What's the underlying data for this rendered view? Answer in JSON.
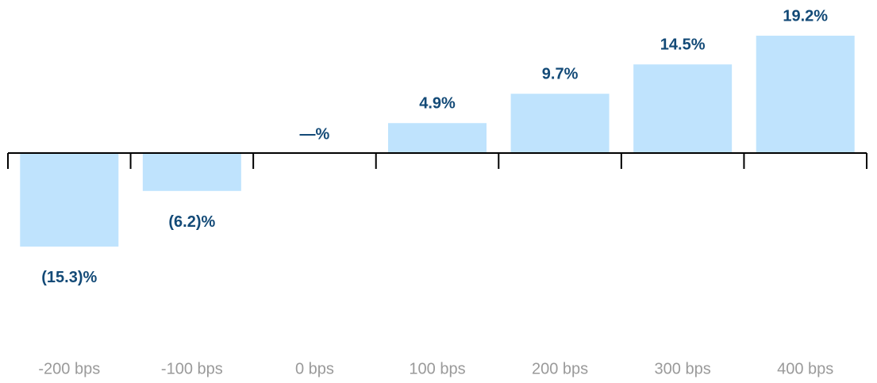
{
  "chart_data": {
    "type": "bar",
    "categories": [
      "-200 bps",
      "-100 bps",
      "0 bps",
      "100 bps",
      "200 bps",
      "300 bps",
      "400 bps"
    ],
    "values": [
      -15.3,
      -6.2,
      0,
      4.9,
      9.7,
      14.5,
      19.2
    ],
    "value_labels": [
      "(15.3)%",
      "(6.2)%",
      "—%",
      "4.9%",
      "9.7%",
      "14.5%",
      "19.2%"
    ],
    "color": "#bfe3fd"
  }
}
